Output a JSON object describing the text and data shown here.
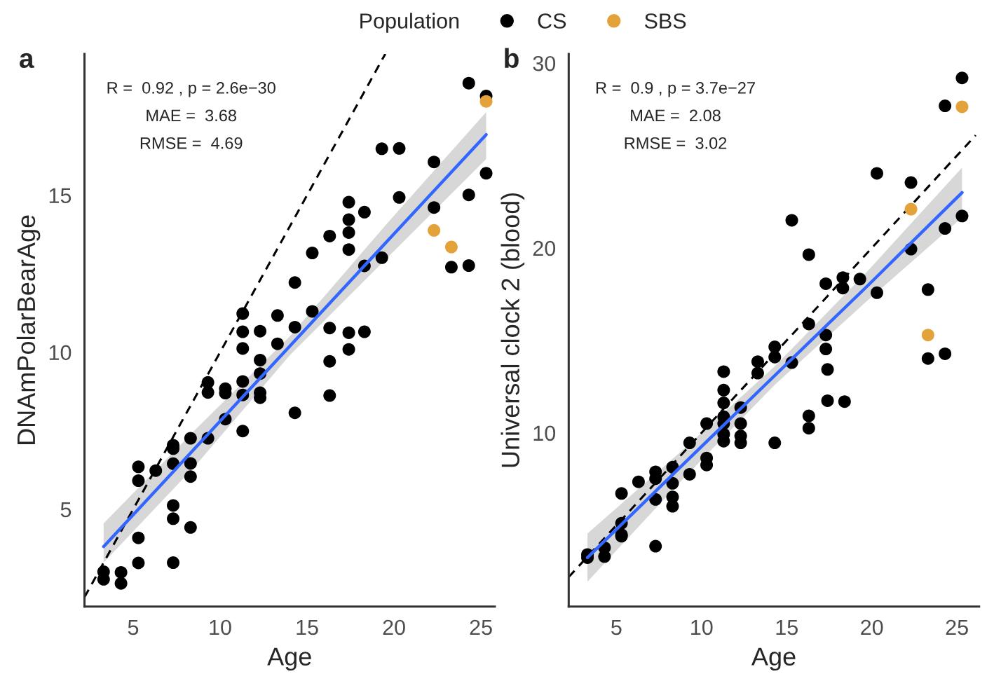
{
  "chart_data": [
    {
      "type": "scatter",
      "title": "a",
      "xlabel": "Age",
      "ylabel": "DNAmPolarBearAge",
      "legend_title": "Population",
      "legend": "top",
      "marker": "circle",
      "grid": false,
      "xlim": [
        2.2,
        25.8
      ],
      "xticks": [
        5,
        10,
        15,
        20,
        25
      ],
      "ylim": [
        1.9,
        19.5
      ],
      "yticks": [
        5,
        10,
        15
      ],
      "annotations": [
        "R =  0.92 , p = 2.6e−30",
        "MAE =  3.68",
        "RMSE =  4.69"
      ],
      "series": [
        {
          "name": "CS",
          "color": "#000000",
          "x": [
            3.3,
            3.3,
            4.3,
            4.3,
            5.3,
            5.3,
            5.3,
            5.3,
            6.3,
            7.3,
            7.3,
            7.3,
            7.3,
            7.3,
            7.3,
            8.3,
            8.3,
            8.3,
            8.3,
            9.3,
            9.3,
            9.3,
            10.3,
            10.3,
            10.3,
            11.3,
            11.3,
            11.3,
            11.3,
            11.3,
            11.3,
            12.3,
            12.3,
            12.3,
            12.3,
            12.3,
            13.3,
            13.3,
            14.3,
            14.3,
            14.3,
            15.3,
            15.3,
            16.3,
            16.3,
            16.3,
            16.3,
            17.4,
            17.4,
            17.4,
            17.4,
            17.4,
            17.4,
            18.3,
            18.3,
            18.3,
            19.3,
            19.3,
            20.3,
            20.3,
            22.3,
            22.3,
            23.3,
            24.3,
            24.3,
            24.3,
            25.3,
            25.3
          ],
          "values": [
            3.01,
            2.77,
            2.99,
            2.64,
            6.35,
            5.91,
            4.09,
            3.29,
            6.23,
            7.04,
            6.93,
            6.45,
            5.12,
            4.7,
            3.3,
            7.26,
            6.46,
            6.04,
            4.42,
            9.04,
            8.72,
            7.26,
            8.84,
            8.7,
            7.87,
            10.12,
            9.07,
            8.64,
            7.49,
            11.23,
            10.65,
            9.75,
            9.32,
            8.71,
            8.55,
            10.67,
            10.27,
            11.17,
            8.07,
            12.22,
            10.8,
            13.16,
            11.3,
            9.71,
            8.62,
            13.7,
            10.77,
            10.09,
            14.78,
            14.22,
            13.81,
            13.27,
            10.62,
            14.46,
            12.75,
            10.65,
            16.48,
            13.01,
            16.49,
            14.93,
            16.06,
            14.61,
            12.71,
            18.57,
            15.01,
            12.76,
            18.16,
            15.7
          ]
        },
        {
          "name": "SBS",
          "color": "#e3a33a",
          "x": [
            22.3,
            23.3,
            25.3
          ],
          "values": [
            13.88,
            13.35,
            17.99
          ]
        },
        {
          "type": "line",
          "color": "#3366ff",
          "marker": "none",
          "x": [
            3.3,
            8.6,
            14,
            19.6,
            25.3
          ],
          "values": [
            3.81,
            6.97,
            10.19,
            13.53,
            16.93
          ],
          "lower": [
            3.3,
            6.4,
            9.9,
            13.0,
            16.15
          ],
          "upper": [
            4.55,
            7.55,
            10.5,
            14.1,
            17.65
          ]
        },
        {
          "type": "line",
          "color": "#000000",
          "marker": "none",
          "line_style": "dashed",
          "x": [
            2.2,
            19.5
          ],
          "values": [
            2.2,
            19.5
          ]
        }
      ]
    },
    {
      "type": "scatter",
      "title": "b",
      "xlabel": "Age",
      "ylabel": "Universal clock 2 (blood)",
      "marker": "circle",
      "grid": false,
      "xlim": [
        2.2,
        26.3
      ],
      "xticks": [
        5,
        10,
        15,
        20,
        25
      ],
      "ylim": [
        0.6,
        30.5
      ],
      "yticks": [
        10,
        20,
        30
      ],
      "annotations": [
        "R =  0.9 , p = 3.7e−27",
        "MAE =  2.08",
        "RMSE =  3.02"
      ],
      "series": [
        {
          "color": "#000000",
          "x": [
            3.3,
            3.3,
            4.3,
            4.3,
            5.3,
            5.3,
            5.3,
            5.3,
            6.3,
            7.3,
            7.3,
            7.3,
            7.3,
            8.3,
            8.3,
            8.3,
            8.3,
            9.3,
            9.3,
            10.3,
            10.3,
            10.3,
            11.3,
            11.3,
            11.3,
            11.3,
            11.3,
            11.3,
            11.3,
            12.3,
            12.3,
            12.3,
            12.3,
            13.3,
            13.3,
            14.3,
            14.3,
            14.3,
            15.3,
            15.3,
            16.3,
            16.3,
            16.3,
            16.3,
            17.3,
            17.3,
            17.3,
            17.4,
            17.4,
            18.3,
            18.3,
            18.4,
            19.3,
            20.3,
            20.3,
            22.3,
            22.3,
            23.3,
            23.3,
            24.3,
            24.3,
            24.3,
            25.3,
            25.3
          ],
          "values": [
            3.42,
            3.25,
            3.79,
            3.31,
            6.72,
            5.11,
            4.49,
            4.41,
            7.35,
            7.89,
            7.52,
            6.4,
            3.87,
            8.14,
            7.27,
            6.53,
            6.03,
            9.46,
            7.76,
            10.5,
            8.64,
            8.26,
            13.31,
            12.31,
            11.62,
            10.87,
            10.5,
            9.93,
            9.55,
            11.37,
            10.5,
            9.83,
            9.46,
            13.85,
            13.23,
            14.65,
            14.1,
            9.46,
            13.8,
            21.5,
            10.92,
            10.25,
            19.64,
            15.89,
            18.07,
            15.29,
            14.54,
            13.43,
            11.74,
            18.4,
            17.83,
            11.69,
            18.32,
            24.04,
            17.58,
            23.54,
            19.94,
            17.75,
            14.02,
            27.69,
            21.06,
            14.28,
            29.2,
            21.73
          ]
        },
        {
          "color": "#e3a33a",
          "x": [
            22.3,
            23.3,
            25.3
          ],
          "values": [
            22.1,
            15.29,
            27.64
          ]
        },
        {
          "type": "line",
          "color": "#3366ff",
          "marker": "none",
          "x": [
            3.3,
            8.8,
            14.3,
            19.8,
            25.3
          ],
          "values": [
            3.25,
            8.19,
            13.1,
            18.0,
            23.0
          ],
          "lower": [
            1.95,
            7.4,
            12.6,
            17.2,
            21.65
          ],
          "upper": [
            4.55,
            9.0,
            13.6,
            18.8,
            24.35
          ]
        },
        {
          "type": "line",
          "color": "#000000",
          "marker": "none",
          "line_style": "dashed",
          "x": [
            2.2,
            26.1
          ],
          "values": [
            2.2,
            26.1
          ]
        }
      ]
    }
  ]
}
